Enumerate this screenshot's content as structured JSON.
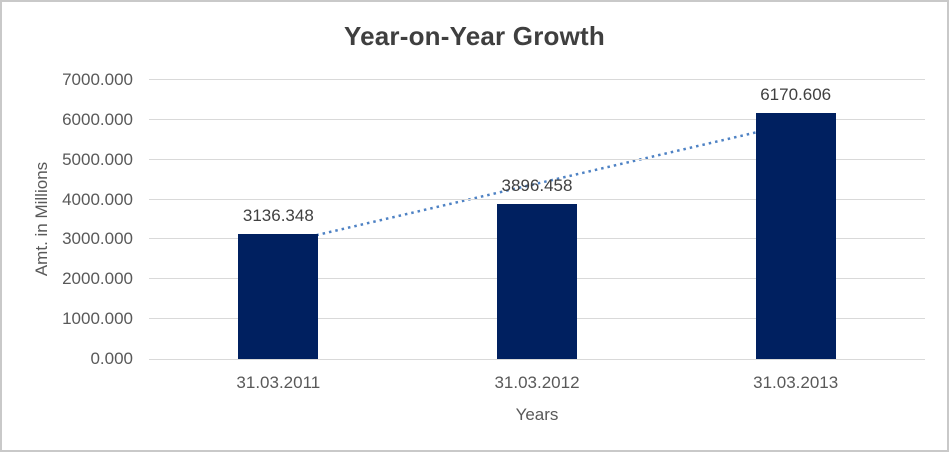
{
  "chart_data": {
    "type": "bar",
    "title": "Year-on-Year Growth",
    "xlabel": "Years",
    "ylabel": "Amt. in Millions",
    "categories": [
      "31.03.2011",
      "31.03.2012",
      "31.03.2013"
    ],
    "values": [
      3136.348,
      3896.458,
      6170.606
    ],
    "data_labels": [
      "3136.348",
      "3896.458",
      "6170.606"
    ],
    "ylim": [
      0,
      7000
    ],
    "ytick_step": 1000,
    "ytick_labels": [
      "0.000",
      "1000.000",
      "2000.000",
      "3000.000",
      "4000.000",
      "5000.000",
      "6000.000",
      "7000.000"
    ],
    "grid": true,
    "legend": "none",
    "trendline": {
      "type": "linear",
      "style": "dotted",
      "color": "#4e82c4"
    },
    "colors": {
      "bar": "#002060",
      "gridline": "#d9d9d9",
      "axis_line": "#d9d9d9",
      "title_text": "#3f3f3f",
      "axis_text": "#595959",
      "data_label_text": "#404040",
      "background": "#ffffff",
      "frame_border": "#c9c9c9"
    }
  }
}
